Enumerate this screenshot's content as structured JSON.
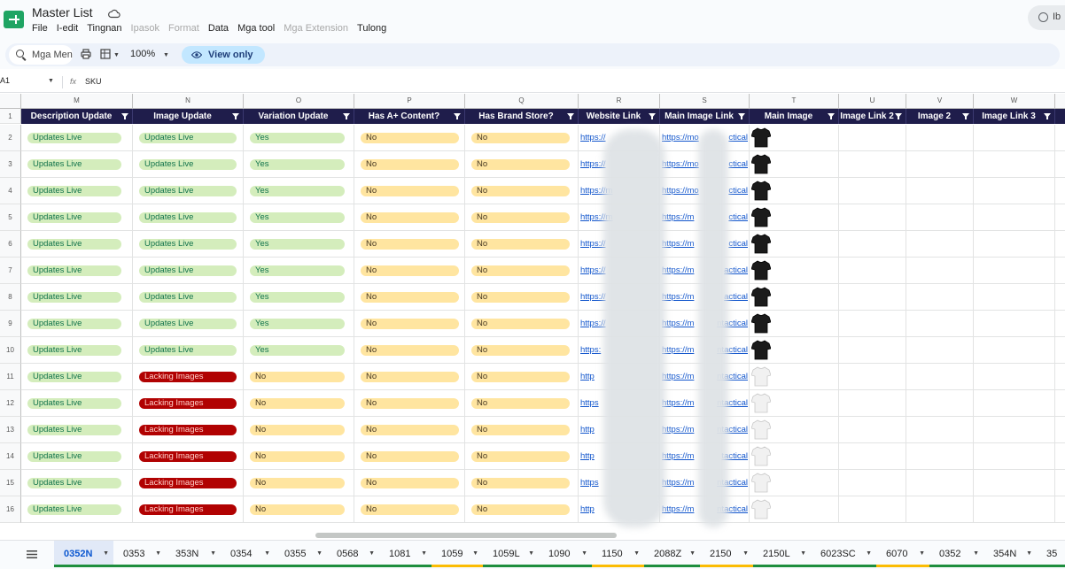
{
  "app": {
    "title": "Master List",
    "menu": [
      "File",
      "I-edit",
      "Tingnan",
      "Ipasok",
      "Format",
      "Data",
      "Mga tool",
      "Mga Extension",
      "Tulong"
    ],
    "menu_disabled": [
      false,
      false,
      false,
      true,
      true,
      false,
      false,
      true,
      false
    ],
    "account_text": "Ib"
  },
  "toolbar": {
    "search_placeholder": "Mga Men",
    "zoom": "100%",
    "view_only_label": "View only"
  },
  "formula_bar": {
    "cell_ref": "A1",
    "fx": "fx",
    "value": "SKU"
  },
  "columns": [
    {
      "letter": "M",
      "header": "Description Update"
    },
    {
      "letter": "N",
      "header": "Image Update"
    },
    {
      "letter": "O",
      "header": "Variation Update"
    },
    {
      "letter": "P",
      "header": "Has A+ Content?"
    },
    {
      "letter": "Q",
      "header": "Has Brand Store?"
    },
    {
      "letter": "R",
      "header": "Website Link"
    },
    {
      "letter": "S",
      "header": "Main Image Link"
    },
    {
      "letter": "T",
      "header": "Main Image"
    },
    {
      "letter": "U",
      "header": "Image Link 2"
    },
    {
      "letter": "V",
      "header": "Image 2"
    },
    {
      "letter": "W",
      "header": "Image Link 3"
    }
  ],
  "header_row_number": "1",
  "rows": [
    {
      "num": "2",
      "m": "Updates Live",
      "n": "Updates Live",
      "o": "Yes",
      "p": "No",
      "q": "No",
      "r": "https://",
      "s": "https://mo",
      "s_tail": "ctical",
      "shirt": "black"
    },
    {
      "num": "3",
      "m": "Updates Live",
      "n": "Updates Live",
      "o": "Yes",
      "p": "No",
      "q": "No",
      "r": "https://",
      "s": "https://mo",
      "s_tail": "ctical",
      "shirt": "black"
    },
    {
      "num": "4",
      "m": "Updates Live",
      "n": "Updates Live",
      "o": "Yes",
      "p": "No",
      "q": "No",
      "r": "https://m",
      "s": "https://mo",
      "s_tail": "ctical",
      "shirt": "black"
    },
    {
      "num": "5",
      "m": "Updates Live",
      "n": "Updates Live",
      "o": "Yes",
      "p": "No",
      "q": "No",
      "r": "https://m",
      "s": "https://m",
      "s_tail": "ctical",
      "shirt": "black"
    },
    {
      "num": "6",
      "m": "Updates Live",
      "n": "Updates Live",
      "o": "Yes",
      "p": "No",
      "q": "No",
      "r": "https://",
      "s": "https://m",
      "s_tail": "ctical",
      "shirt": "black"
    },
    {
      "num": "7",
      "m": "Updates Live",
      "n": "Updates Live",
      "o": "Yes",
      "p": "No",
      "q": "No",
      "r": "https://",
      "s": "https://m",
      "s_tail": "actical",
      "shirt": "black"
    },
    {
      "num": "8",
      "m": "Updates Live",
      "n": "Updates Live",
      "o": "Yes",
      "p": "No",
      "q": "No",
      "r": "https://",
      "s": "https://m",
      "s_tail": "actical",
      "shirt": "black"
    },
    {
      "num": "9",
      "m": "Updates Live",
      "n": "Updates Live",
      "o": "Yes",
      "p": "No",
      "q": "No",
      "r": "https://",
      "s": "https://m",
      "s_tail": "ntactical",
      "shirt": "black"
    },
    {
      "num": "10",
      "m": "Updates Live",
      "n": "Updates Live",
      "o": "Yes",
      "p": "No",
      "q": "No",
      "r": "https:",
      "s": "https://m",
      "s_tail": "ntactical",
      "shirt": "black"
    },
    {
      "num": "11",
      "m": "Updates Live",
      "n": "Lacking Images",
      "o": "No",
      "p": "No",
      "q": "No",
      "r": "http",
      "s": "https://m",
      "s_tail": "ntactical",
      "shirt": "white"
    },
    {
      "num": "12",
      "m": "Updates Live",
      "n": "Lacking Images",
      "o": "No",
      "p": "No",
      "q": "No",
      "r": "https",
      "s": "https://m",
      "s_tail": "ntactical",
      "shirt": "white"
    },
    {
      "num": "13",
      "m": "Updates Live",
      "n": "Lacking Images",
      "o": "No",
      "p": "No",
      "q": "No",
      "r": "http",
      "s": "https://m",
      "s_tail": "ntactical",
      "shirt": "white"
    },
    {
      "num": "14",
      "m": "Updates Live",
      "n": "Lacking Images",
      "o": "No",
      "p": "No",
      "q": "No",
      "r": "http",
      "s": "https://m",
      "s_tail": "tactical",
      "shirt": "white"
    },
    {
      "num": "15",
      "m": "Updates Live",
      "n": "Lacking Images",
      "o": "No",
      "p": "No",
      "q": "No",
      "r": "https",
      "s": "https://m",
      "s_tail": "ntactical",
      "shirt": "white"
    },
    {
      "num": "16",
      "m": "Updates Live",
      "n": "Lacking Images",
      "o": "No",
      "p": "No",
      "q": "No",
      "r": "http",
      "s": "https://m",
      "s_tail": "ntactical",
      "shirt": "white"
    }
  ],
  "sheet_tabs": [
    {
      "name": "0352N",
      "active": true,
      "color": "#1e8e3e"
    },
    {
      "name": "0353",
      "active": false,
      "color": "#1e8e3e"
    },
    {
      "name": "353N",
      "active": false,
      "color": "#1e8e3e"
    },
    {
      "name": "0354",
      "active": false,
      "color": "#1e8e3e"
    },
    {
      "name": "0355",
      "active": false,
      "color": "#1e8e3e"
    },
    {
      "name": "0568",
      "active": false,
      "color": "#1e8e3e"
    },
    {
      "name": "1081",
      "active": false,
      "color": "#1e8e3e"
    },
    {
      "name": "1059",
      "active": false,
      "color": "#fbbc04"
    },
    {
      "name": "1059L",
      "active": false,
      "color": "#1e8e3e"
    },
    {
      "name": "1090",
      "active": false,
      "color": "#1e8e3e"
    },
    {
      "name": "1150",
      "active": false,
      "color": "#fbbc04"
    },
    {
      "name": "2088Z",
      "active": false,
      "color": "#1e8e3e"
    },
    {
      "name": "2150",
      "active": false,
      "color": "#fbbc04"
    },
    {
      "name": "2150L",
      "active": false,
      "color": "#1e8e3e"
    },
    {
      "name": "6023SC",
      "active": false,
      "color": "#1e8e3e"
    },
    {
      "name": "6070",
      "active": false,
      "color": "#fbbc04"
    },
    {
      "name": "0352",
      "active": false,
      "color": "#1e8e3e"
    },
    {
      "name": "354N",
      "active": false,
      "color": "#1e8e3e"
    },
    {
      "name": "35",
      "active": false,
      "color": "#1e8e3e"
    }
  ],
  "colors": {
    "header_bg": "#1f1d4b",
    "chip_green": "#d4edbc",
    "chip_red": "#b10202",
    "chip_yellow": "#ffe5a0",
    "link": "#1155cc",
    "accent": "#0b57d0"
  }
}
